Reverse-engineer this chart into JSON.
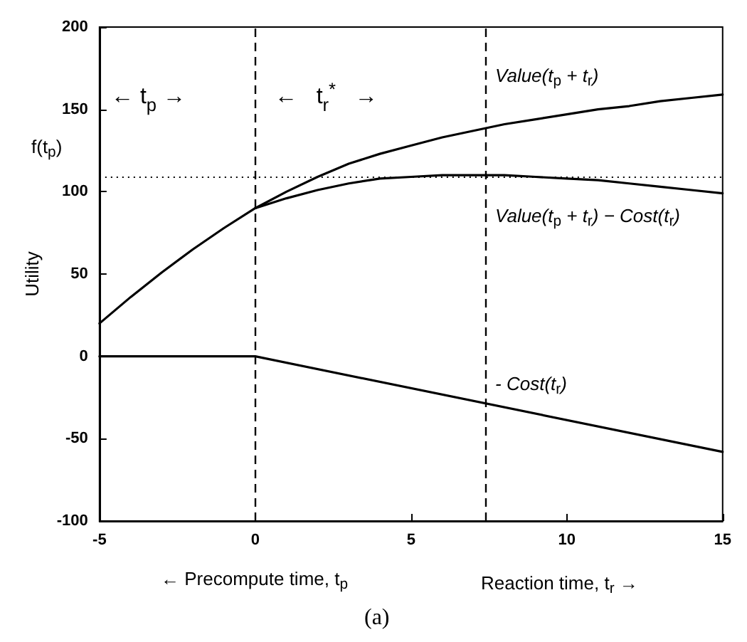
{
  "chart_data": {
    "type": "line",
    "ylabel": "Utility",
    "xlabel": "← Precompute time, t$_{p}$",
    "xlim": [
      -5,
      15
    ],
    "xticks": [
      -5,
      0,
      5,
      10,
      15
    ],
    "ylim": [
      -100,
      200
    ],
    "yticks": [
      -100,
      -50,
      0,
      50,
      100,
      150,
      200
    ],
    "grid": false,
    "legend": false,
    "marker": "none",
    "series": [
      {
        "name": "Value(t$_{p}$ + t$_{r}$)",
        "color": "#000000",
        "line_style": "solid",
        "x": [
          -5,
          -4,
          -3,
          -2,
          -1,
          0,
          1,
          2,
          3,
          4,
          5,
          6,
          7,
          8,
          9,
          10,
          11,
          12,
          13,
          14,
          15
        ],
        "values": [
          20,
          36,
          51,
          65,
          78,
          90,
          100,
          109,
          117,
          123,
          128,
          133,
          137,
          141,
          144,
          147,
          150,
          152,
          155,
          157,
          159
        ]
      },
      {
        "name": "Value(t$_{p}$ + t$_{r}$) − Cost(t$_{r}$)",
        "color": "#000000",
        "line_style": "solid",
        "x": [
          0,
          1,
          2,
          3,
          4,
          5,
          6,
          7,
          8,
          9,
          10,
          11,
          12,
          13,
          14,
          15
        ],
        "values": [
          90,
          96,
          101,
          105,
          108,
          109,
          110,
          110,
          110,
          109,
          108,
          107,
          105,
          103,
          101,
          99
        ]
      },
      {
        "name": "- Cost(t$_{r}$)",
        "color": "#000000",
        "line_style": "solid",
        "x": [
          -5,
          0,
          15
        ],
        "values": [
          0,
          0,
          -58
        ]
      }
    ],
    "ref_lines": [
      {
        "axis": "x",
        "value": 0,
        "line_style": "dashed",
        "color": "#000000"
      },
      {
        "axis": "x",
        "value": 7.4,
        "line_style": "dashed",
        "color": "#000000"
      },
      {
        "axis": "y",
        "value": 109,
        "label": "f(t$_{p}$)",
        "line_style": "dotted",
        "color": "#000000"
      }
    ],
    "annotations": [
      "← t$_{p}$ →",
      "←   t$_{r}$$^{*}$   →",
      "Reaction time, t$_{r}$ →",
      "(a)"
    ]
  }
}
